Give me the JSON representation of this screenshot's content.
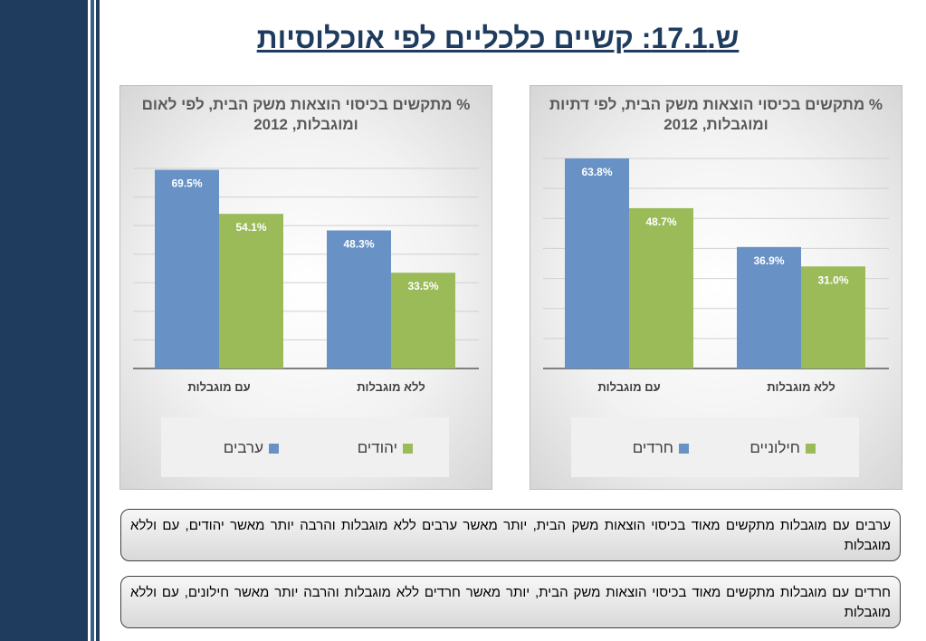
{
  "page": {
    "title": "ש.17.1: קשיים כלכליים לפי אוכלוסיות"
  },
  "colors": {
    "blue": "#6892c6",
    "green": "#9bbb59",
    "sidebar": "#1f3c5e"
  },
  "chart_data": [
    {
      "type": "bar",
      "title": "% מתקשים בכיסוי הוצאות משק הבית, לפי לאום ומוגבלות, 2012",
      "categories": [
        "עם מוגבלות",
        "ללא מוגבלות"
      ],
      "series": [
        {
          "name": "ערבים",
          "values": [
            69.5,
            48.3
          ],
          "labels": [
            "69.5%",
            "48.3%"
          ],
          "color": "#6892c6"
        },
        {
          "name": "יהודים",
          "values": [
            54.1,
            33.5
          ],
          "labels": [
            "54.1%",
            "33.5%"
          ],
          "color": "#9bbb59"
        }
      ],
      "ylim": [
        0,
        70
      ],
      "grid": true,
      "legend": "bottom"
    },
    {
      "type": "bar",
      "title": "% מתקשים בכיסוי הוצאות משק הבית, לפי דתיות ומוגבלות, 2012",
      "categories": [
        "עם מוגבלות",
        "ללא מוגבלות"
      ],
      "series": [
        {
          "name": "חרדים",
          "values": [
            63.8,
            36.9
          ],
          "labels": [
            "63.8%",
            "36.9%"
          ],
          "color": "#6892c6"
        },
        {
          "name": "חילוניים",
          "values": [
            48.7,
            31.0
          ],
          "labels": [
            "48.7%",
            "31.0%"
          ],
          "color": "#9bbb59"
        }
      ],
      "ylim": [
        0,
        63.8
      ],
      "grid": true,
      "legend": "bottom"
    }
  ],
  "notes": [
    "ערבים עם מוגבלות מתקשים מאוד בכיסוי הוצאות משק הבית, יותר מאשר ערבים ללא מוגבלות והרבה יותר מאשר יהודים, עם וללא מוגבלות",
    "חרדים עם מוגבלות מתקשים מאוד בכיסוי הוצאות משק הבית, יותר מאשר חרדים ללא מוגבלות והרבה יותר מאשר חילונים, עם וללא מוגבלות"
  ]
}
